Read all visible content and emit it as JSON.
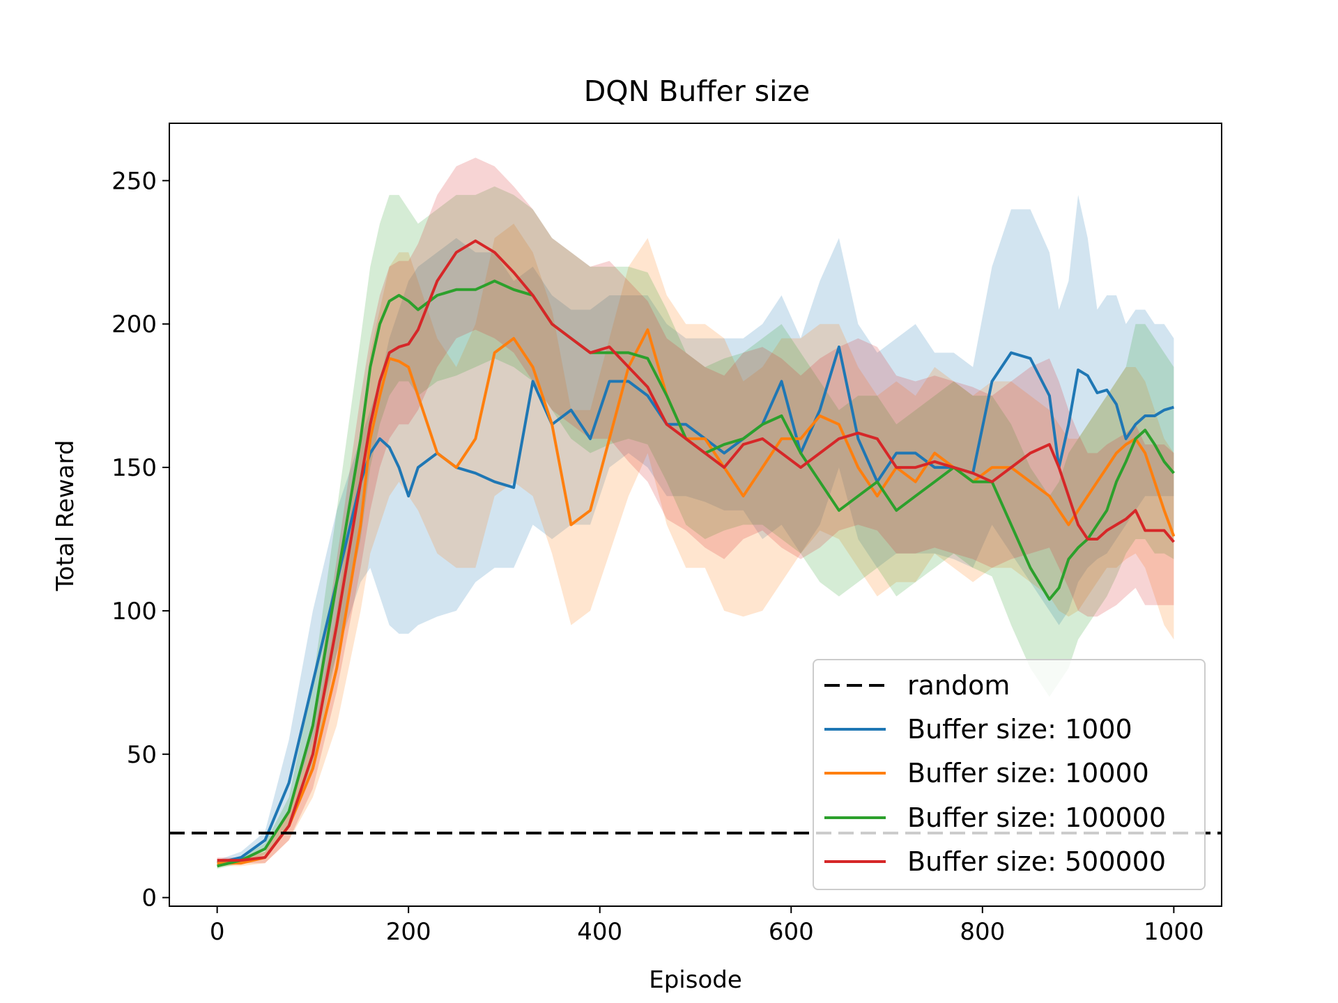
{
  "chart_data": {
    "type": "line",
    "title": "DQN Buffer size",
    "xlabel": "Episode",
    "ylabel": "Total Reward",
    "xlim": [
      -50,
      1050
    ],
    "ylim": [
      -3,
      270
    ],
    "xticks": [
      0,
      200,
      400,
      600,
      800,
      1000
    ],
    "yticks": [
      0,
      50,
      100,
      150,
      200,
      250
    ],
    "grid": false,
    "legend_position": "lower-right",
    "baseline": {
      "name": "random",
      "value": 22.5,
      "color": "#000000",
      "style": "dashed"
    },
    "series": [
      {
        "name": "Buffer size: 1000",
        "color": "#1f77b4",
        "x": [
          0,
          25,
          50,
          75,
          100,
          125,
          150,
          160,
          170,
          180,
          190,
          200,
          210,
          230,
          250,
          270,
          290,
          310,
          330,
          350,
          370,
          390,
          410,
          430,
          450,
          470,
          490,
          510,
          530,
          550,
          570,
          590,
          610,
          630,
          650,
          670,
          690,
          710,
          730,
          750,
          770,
          790,
          810,
          830,
          850,
          870,
          880,
          890,
          900,
          910,
          920,
          930,
          940,
          950,
          960,
          970,
          980,
          990,
          1000
        ],
        "y": [
          12,
          14,
          20,
          40,
          75,
          110,
          145,
          155,
          160,
          157,
          150,
          140,
          150,
          155,
          150,
          148,
          145,
          143,
          180,
          165,
          170,
          160,
          180,
          180,
          175,
          165,
          165,
          160,
          155,
          160,
          165,
          180,
          155,
          170,
          192,
          160,
          145,
          155,
          155,
          150,
          150,
          148,
          180,
          190,
          188,
          175,
          150,
          165,
          184,
          182,
          176,
          177,
          172,
          160,
          165,
          168,
          168,
          170,
          171
        ],
        "lower": [
          12,
          13,
          17,
          30,
          55,
          85,
          110,
          115,
          105,
          95,
          92,
          92,
          95,
          98,
          100,
          110,
          115,
          115,
          130,
          125,
          130,
          130,
          150,
          155,
          150,
          140,
          140,
          138,
          135,
          135,
          125,
          130,
          120,
          130,
          150,
          125,
          115,
          120,
          120,
          120,
          118,
          115,
          130,
          120,
          110,
          100,
          95,
          100,
          110,
          115,
          118,
          120,
          125,
          130,
          135,
          140,
          140,
          140,
          140
        ],
        "upper": [
          13,
          16,
          23,
          55,
          100,
          135,
          160,
          170,
          180,
          195,
          205,
          215,
          220,
          225,
          230,
          225,
          225,
          215,
          220,
          210,
          205,
          205,
          210,
          210,
          210,
          200,
          195,
          195,
          195,
          195,
          200,
          210,
          195,
          215,
          230,
          200,
          190,
          195,
          200,
          190,
          190,
          185,
          220,
          240,
          240,
          225,
          205,
          215,
          245,
          230,
          205,
          210,
          210,
          200,
          205,
          205,
          200,
          200,
          195
        ]
      },
      {
        "name": "Buffer size: 10000",
        "color": "#ff7f0e",
        "x": [
          0,
          25,
          50,
          75,
          100,
          125,
          150,
          160,
          170,
          180,
          190,
          200,
          210,
          230,
          250,
          270,
          290,
          310,
          330,
          350,
          370,
          390,
          410,
          430,
          450,
          470,
          490,
          510,
          530,
          550,
          570,
          590,
          610,
          630,
          650,
          670,
          690,
          710,
          730,
          750,
          770,
          790,
          810,
          830,
          850,
          870,
          880,
          890,
          900,
          910,
          920,
          930,
          940,
          950,
          960,
          970,
          980,
          990,
          1000
        ],
        "y": [
          12,
          12,
          14,
          25,
          45,
          80,
          130,
          160,
          175,
          188,
          187,
          185,
          175,
          155,
          150,
          160,
          190,
          195,
          185,
          165,
          130,
          135,
          160,
          185,
          198,
          175,
          160,
          160,
          150,
          140,
          150,
          160,
          160,
          168,
          165,
          150,
          140,
          150,
          145,
          155,
          150,
          145,
          150,
          150,
          145,
          140,
          135,
          130,
          135,
          140,
          145,
          150,
          155,
          158,
          160,
          155,
          145,
          135,
          126
        ],
        "lower": [
          11,
          11,
          12,
          20,
          35,
          60,
          100,
          120,
          130,
          140,
          145,
          140,
          135,
          120,
          115,
          115,
          140,
          145,
          140,
          120,
          95,
          100,
          120,
          140,
          155,
          130,
          115,
          115,
          100,
          98,
          100,
          110,
          120,
          128,
          125,
          115,
          105,
          110,
          110,
          120,
          115,
          110,
          115,
          115,
          110,
          105,
          100,
          98,
          100,
          105,
          110,
          115,
          115,
          118,
          120,
          115,
          105,
          95,
          90
        ],
        "upper": [
          13,
          13,
          16,
          30,
          55,
          100,
          160,
          190,
          205,
          220,
          225,
          225,
          215,
          195,
          185,
          200,
          230,
          235,
          225,
          205,
          170,
          170,
          195,
          220,
          230,
          210,
          200,
          200,
          195,
          180,
          185,
          195,
          195,
          200,
          200,
          185,
          175,
          180,
          175,
          185,
          180,
          175,
          180,
          180,
          175,
          170,
          165,
          160,
          160,
          165,
          170,
          175,
          180,
          185,
          185,
          180,
          170,
          160,
          155
        ]
      },
      {
        "name": "Buffer size: 100000",
        "color": "#2ca02c",
        "x": [
          0,
          25,
          50,
          75,
          100,
          125,
          150,
          160,
          170,
          180,
          190,
          200,
          210,
          230,
          250,
          270,
          290,
          310,
          330,
          350,
          370,
          390,
          410,
          430,
          450,
          470,
          490,
          510,
          530,
          550,
          570,
          590,
          610,
          630,
          650,
          670,
          690,
          710,
          730,
          750,
          770,
          790,
          810,
          830,
          850,
          870,
          880,
          890,
          900,
          910,
          920,
          930,
          940,
          950,
          960,
          970,
          980,
          990,
          1000
        ],
        "y": [
          11,
          13,
          17,
          30,
          60,
          110,
          160,
          185,
          200,
          208,
          210,
          208,
          205,
          210,
          212,
          212,
          215,
          212,
          210,
          200,
          195,
          190,
          190,
          190,
          188,
          175,
          160,
          155,
          158,
          160,
          165,
          168,
          155,
          145,
          135,
          140,
          145,
          135,
          140,
          145,
          150,
          145,
          145,
          130,
          115,
          104,
          108,
          118,
          122,
          125,
          130,
          135,
          145,
          152,
          160,
          163,
          158,
          152,
          148
        ],
        "lower": [
          10,
          12,
          15,
          25,
          45,
          85,
          125,
          150,
          165,
          175,
          180,
          180,
          175,
          180,
          182,
          185,
          188,
          185,
          180,
          170,
          160,
          155,
          158,
          160,
          158,
          145,
          130,
          125,
          128,
          130,
          130,
          125,
          120,
          110,
          105,
          110,
          115,
          105,
          110,
          115,
          120,
          115,
          112,
          95,
          80,
          70,
          75,
          80,
          90,
          95,
          100,
          105,
          112,
          120,
          125,
          125,
          120,
          120,
          118
        ],
        "upper": [
          12,
          14,
          19,
          35,
          75,
          135,
          195,
          220,
          235,
          245,
          245,
          240,
          235,
          240,
          245,
          245,
          248,
          245,
          240,
          230,
          225,
          220,
          220,
          220,
          218,
          205,
          190,
          185,
          188,
          190,
          195,
          200,
          190,
          180,
          170,
          175,
          175,
          165,
          170,
          175,
          180,
          175,
          175,
          165,
          150,
          140,
          145,
          155,
          160,
          165,
          170,
          175,
          180,
          185,
          200,
          200,
          195,
          190,
          185
        ]
      },
      {
        "name": "Buffer size: 500000",
        "color": "#d62728",
        "x": [
          0,
          25,
          50,
          75,
          100,
          125,
          150,
          160,
          170,
          180,
          190,
          200,
          210,
          230,
          250,
          270,
          290,
          310,
          330,
          350,
          370,
          390,
          410,
          430,
          450,
          470,
          490,
          510,
          530,
          550,
          570,
          590,
          610,
          630,
          650,
          670,
          690,
          710,
          730,
          750,
          770,
          790,
          810,
          830,
          850,
          870,
          880,
          890,
          900,
          910,
          920,
          930,
          940,
          950,
          960,
          970,
          980,
          990,
          1000
        ],
        "y": [
          13,
          13,
          14,
          25,
          50,
          95,
          145,
          165,
          180,
          190,
          192,
          193,
          198,
          215,
          225,
          229,
          225,
          218,
          210,
          200,
          195,
          190,
          192,
          185,
          178,
          165,
          160,
          155,
          150,
          158,
          160,
          155,
          150,
          155,
          160,
          162,
          160,
          150,
          150,
          152,
          150,
          148,
          145,
          150,
          155,
          158,
          150,
          140,
          130,
          125,
          125,
          128,
          130,
          132,
          135,
          128,
          128,
          128,
          124
        ],
        "lower": [
          12,
          12,
          12,
          20,
          38,
          72,
          115,
          135,
          150,
          160,
          165,
          165,
          170,
          185,
          195,
          198,
          195,
          190,
          180,
          170,
          165,
          160,
          160,
          152,
          145,
          132,
          128,
          122,
          118,
          125,
          128,
          122,
          118,
          122,
          128,
          130,
          128,
          120,
          120,
          122,
          120,
          118,
          115,
          118,
          120,
          122,
          115,
          108,
          100,
          98,
          98,
          100,
          102,
          105,
          108,
          102,
          102,
          102,
          102
        ],
        "upper": [
          14,
          14,
          16,
          30,
          62,
          118,
          175,
          195,
          210,
          220,
          222,
          222,
          228,
          245,
          255,
          258,
          255,
          248,
          240,
          230,
          225,
          220,
          222,
          215,
          208,
          195,
          190,
          185,
          182,
          190,
          192,
          188,
          182,
          188,
          192,
          195,
          192,
          182,
          180,
          182,
          180,
          178,
          175,
          180,
          185,
          188,
          180,
          170,
          162,
          155,
          155,
          158,
          160,
          162,
          165,
          158,
          158,
          158,
          155
        ]
      }
    ]
  }
}
